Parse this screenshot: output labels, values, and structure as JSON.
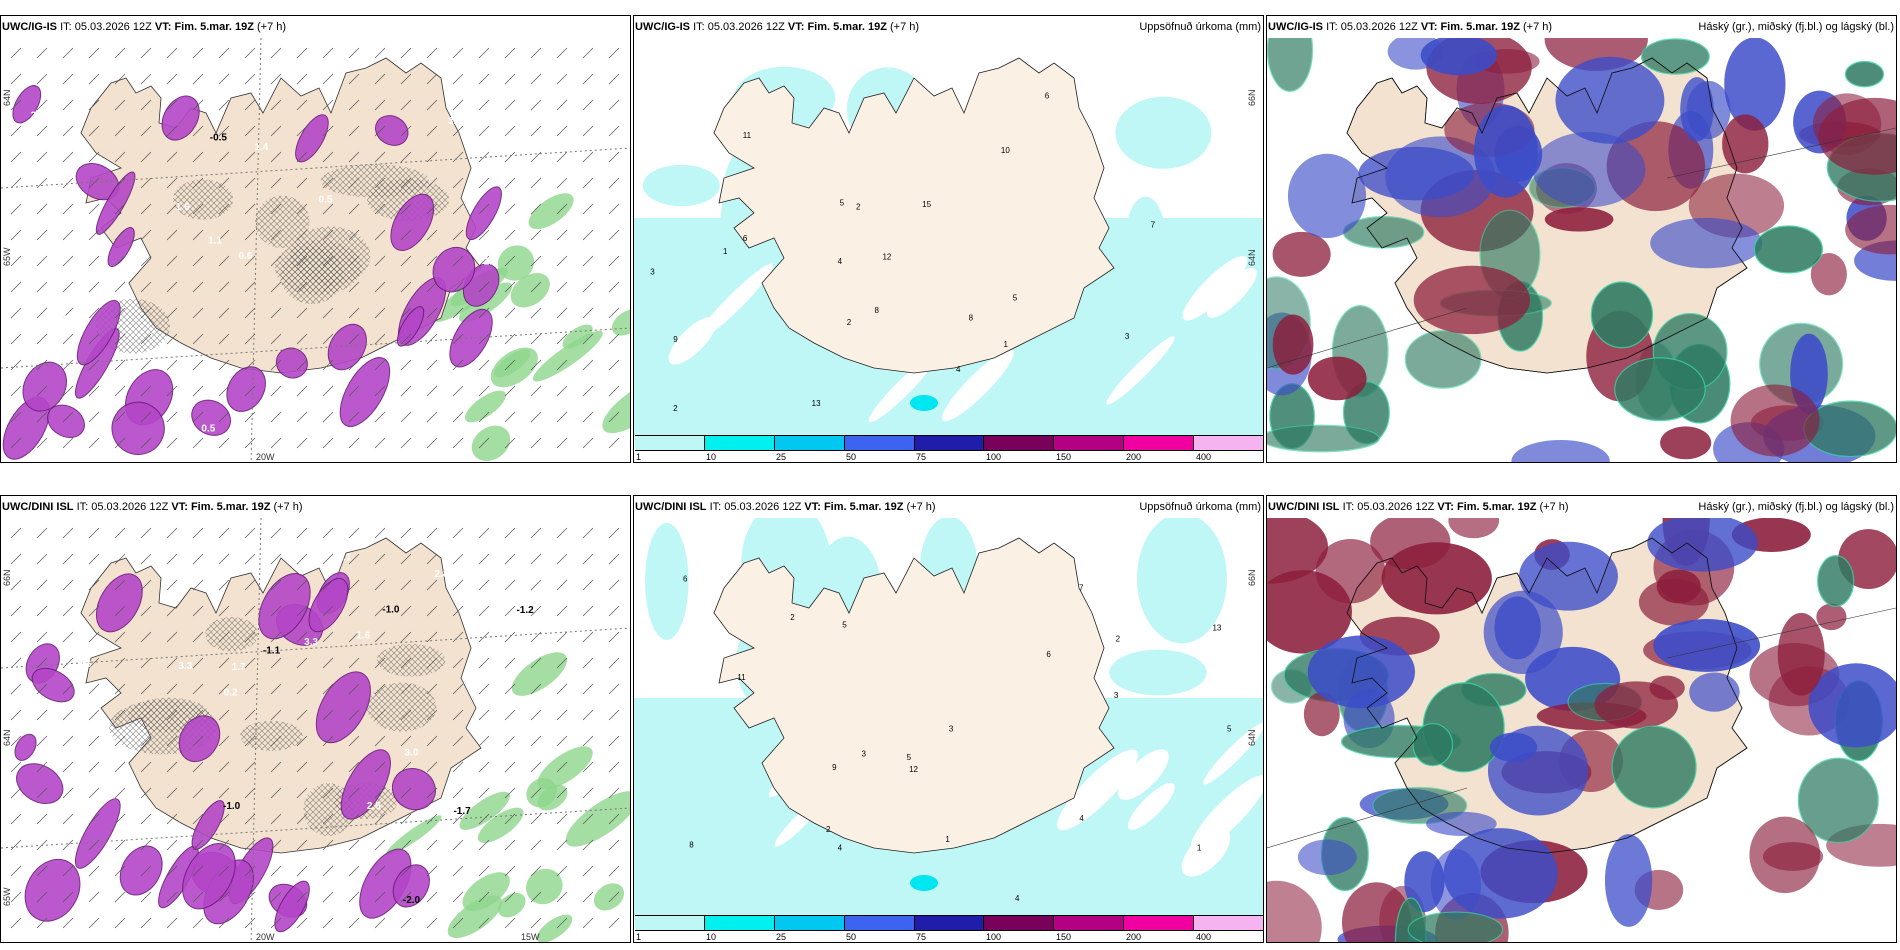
{
  "panels": [
    {
      "model": "UWC/IG-IS",
      "it_label": "IT:",
      "it": "05.03.2026 12Z",
      "vt_label": "VT:",
      "vt": "Fim. 5.mar. 19Z",
      "lead": "(+7 h)",
      "right": "",
      "type": "temp",
      "lats": [
        "64N",
        "65W"
      ],
      "lons": [
        "20W"
      ]
    },
    {
      "model": "UWC/IG-IS",
      "it_label": "IT:",
      "it": "05.03.2026 12Z",
      "vt_label": "VT:",
      "vt": "Fim. 5.mar. 19Z",
      "lead": "(+7 h)",
      "right": "Uppsöfnuð úrkoma (mm)",
      "type": "precip",
      "lats": [
        "66N",
        "64N"
      ],
      "lons": []
    },
    {
      "model": "UWC/IG-IS",
      "it_label": "IT:",
      "it": "05.03.2026 12Z",
      "vt_label": "VT:",
      "vt": "Fim. 5.mar. 19Z",
      "lead": "(+7 h)",
      "right": "Háský (gr.), miðský (fj.bl.) og lágský (bl.)",
      "type": "cloud",
      "lats": [],
      "lons": []
    },
    {
      "model": "UWC/DINI ISL",
      "it_label": "IT:",
      "it": "05.03.2026 12Z",
      "vt_label": "VT:",
      "vt": "Fim. 5.mar. 19Z",
      "lead": "(+7 h)",
      "right": "",
      "type": "temp",
      "lats": [
        "66N",
        "64N",
        "65W"
      ],
      "lons": [
        "20W",
        "15W"
      ]
    },
    {
      "model": "UWC/DINI ISL",
      "it_label": "IT:",
      "it": "05.03.2026 12Z",
      "vt_label": "VT:",
      "vt": "Fim. 5.mar. 19Z",
      "lead": "(+7 h)",
      "right": "Uppsöfnuð úrkoma (mm)",
      "type": "precip",
      "lats": [
        "66N",
        "64N"
      ],
      "lons": []
    },
    {
      "model": "UWC/DINI ISL",
      "it_label": "IT:",
      "it": "05.03.2026 12Z",
      "vt_label": "VT:",
      "vt": "Fim. 5.mar. 19Z",
      "lead": "(+7 h)",
      "right": "Háský (gr.), miðský (fj.bl.) og lágský (bl.)",
      "type": "cloud",
      "lats": [],
      "lons": []
    }
  ],
  "colorbar": {
    "labels": [
      "1",
      "10",
      "25",
      "50",
      "75",
      "100",
      "150",
      "200",
      "400"
    ],
    "colors": [
      "#bff7f7",
      "#00f0f0",
      "#00c8f0",
      "#3c64f0",
      "#1e1eaa",
      "#78005a",
      "#b40082",
      "#f000a0",
      "#f5b4f0"
    ]
  },
  "colors": {
    "land": "#f2e2cf",
    "magenta": "#b446c8",
    "green": "#8fd68c",
    "cyan": "#bff7f7",
    "cloud_red": "#8c1e3c",
    "cloud_green": "#2f7a62",
    "cloud_blue": "#3c4cc8"
  },
  "temp_values_top": [
    "0.5",
    "3.9",
    "1.6",
    "2.2",
    "2.8",
    "1.4",
    "1.1",
    "2.5",
    "3.1",
    "0.6",
    "0.7",
    "-0.5",
    "0.5",
    "0.6"
  ],
  "temp_values_bottom": [
    "0.4",
    "1.7",
    "3.0",
    "2.5",
    "-2.0",
    "-1.1",
    "-1.2",
    "-1.0",
    "3.3",
    "2.6",
    "1.6",
    "3.1",
    "3.0",
    "1.4",
    "2.5",
    "3.3",
    "1.8",
    "-1.7",
    "-1.0",
    "2.8",
    "0.2"
  ],
  "precip_values_top": [
    "3",
    "6",
    "5",
    "4",
    "2",
    "1",
    "2",
    "13",
    "15",
    "7",
    "4",
    "8",
    "5",
    "3",
    "11",
    "1",
    "2",
    "6",
    "10",
    "12",
    "8",
    "9"
  ],
  "precip_values_bottom": [
    "1",
    "2",
    "3",
    "4",
    "5",
    "6",
    "7",
    "8",
    "9",
    "11",
    "13",
    "12",
    "2",
    "1",
    "3",
    "4",
    "5",
    "6",
    "4",
    "3",
    "5",
    "2"
  ]
}
